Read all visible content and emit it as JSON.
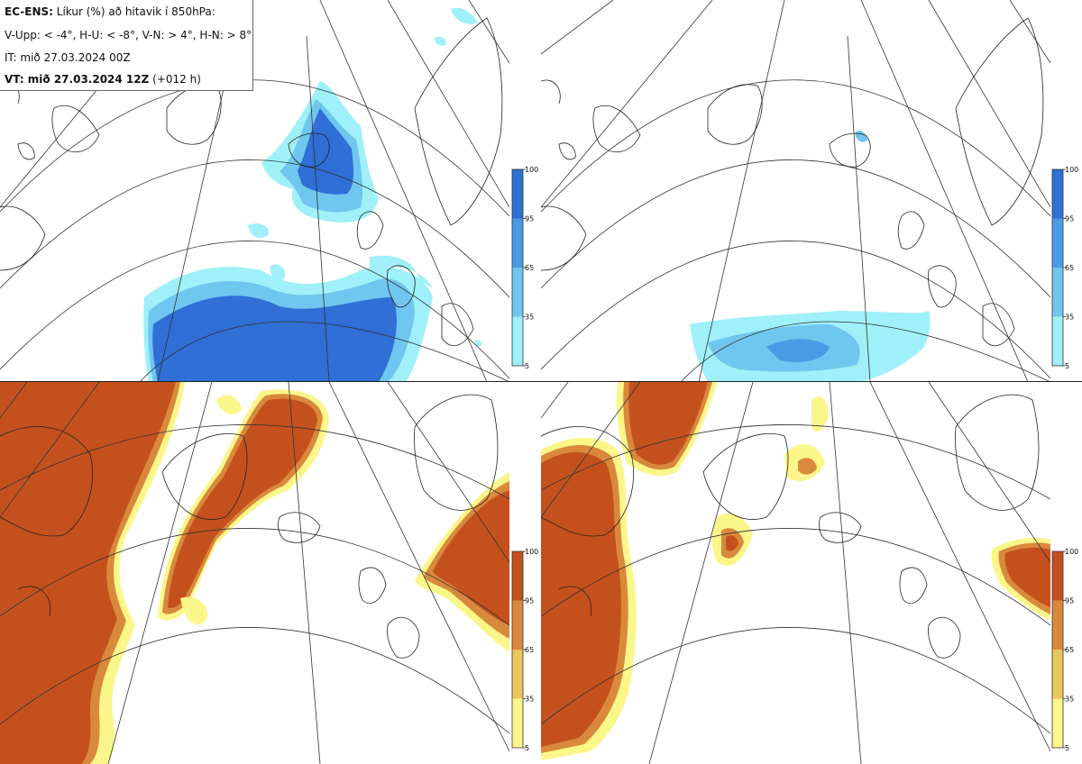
{
  "header": {
    "model": "EC-ENS:",
    "title": "Líkur (%) að hitavik í 850hPa:",
    "categories": "V-Upp: < -4°, H-U: < -8°, V-N: > 4°, H-N: > 8°",
    "initial_time": "IT: mið 27.03.2024 00Z",
    "valid_label": "VT: mið 27.03.2024 12Z",
    "valid_offset": "(+012 h)"
  },
  "colorbars": {
    "cold": {
      "ticks": [
        "100",
        "95",
        "65",
        "35",
        "5"
      ],
      "colors": [
        "#2f6fd6",
        "#4a9be6",
        "#6fc6ee",
        "#9ff0f8"
      ]
    },
    "warm": {
      "ticks": [
        "100",
        "95",
        "65",
        "35",
        "5"
      ],
      "colors": [
        "#c4511d",
        "#d9893c",
        "#ecc45c",
        "#fbf68a"
      ]
    }
  },
  "panels": [
    {
      "id": "V-Upp",
      "palette": "cold"
    },
    {
      "id": "H-U",
      "palette": "cold"
    },
    {
      "id": "V-N",
      "palette": "warm"
    },
    {
      "id": "H-N",
      "palette": "warm"
    }
  ]
}
